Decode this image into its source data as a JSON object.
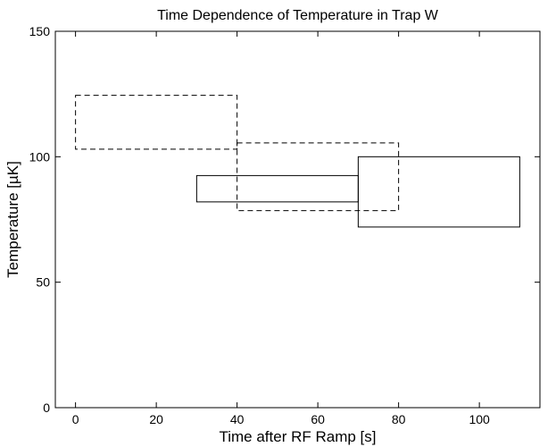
{
  "chart_data": {
    "type": "rectangle-plot",
    "title": "Time Dependence of Temperature in Trap W",
    "xlabel": "Time after RF Ramp [s]",
    "ylabel_prefix": "Temperature [",
    "ylabel_unit": "µK",
    "ylabel_suffix": "]",
    "xlim": [
      -5,
      115
    ],
    "ylim": [
      0,
      150
    ],
    "xticks": [
      0,
      20,
      40,
      60,
      80,
      100
    ],
    "yticks": [
      0,
      50,
      100,
      150
    ],
    "grid": false,
    "legend": "none",
    "rectangles": [
      {
        "style": "dashed",
        "x": [
          0,
          40
        ],
        "y": [
          103,
          124.5
        ]
      },
      {
        "style": "dashed",
        "x": [
          40,
          80
        ],
        "y": [
          78.5,
          105.5
        ]
      },
      {
        "style": "solid",
        "x": [
          30,
          70
        ],
        "y": [
          82,
          92.5
        ]
      },
      {
        "style": "solid",
        "x": [
          70,
          110
        ],
        "y": [
          72,
          100
        ]
      }
    ]
  }
}
